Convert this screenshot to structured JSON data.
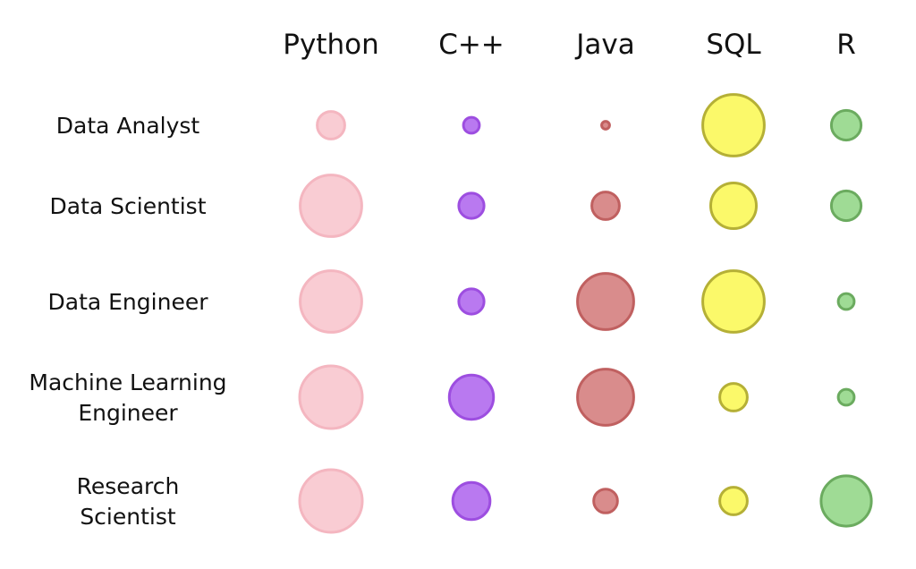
{
  "chart_data": {
    "type": "bubble-matrix",
    "columns": [
      "Python",
      "C++",
      "Java",
      "SQL",
      "R"
    ],
    "rows": [
      {
        "label": [
          "Data Analyst"
        ],
        "values": [
          12,
          4,
          1,
          60,
          14
        ]
      },
      {
        "label": [
          "Data Scientist"
        ],
        "values": [
          60,
          10,
          12,
          33,
          14
        ]
      },
      {
        "label": [
          "Data Engineer"
        ],
        "values": [
          60,
          10,
          50,
          60,
          4
        ]
      },
      {
        "label": [
          "Machine Learning",
          "Engineer"
        ],
        "values": [
          62,
          31,
          50,
          12,
          4
        ]
      },
      {
        "label": [
          "Research",
          "Scientist"
        ],
        "values": [
          62,
          22,
          9,
          12,
          40
        ]
      }
    ],
    "column_colors": [
      {
        "fill": "#f9ccd3",
        "stroke": "#f4b6c0"
      },
      {
        "fill": "#b979f0",
        "stroke": "#9d4ee0"
      },
      {
        "fill": "#d98c8c",
        "stroke": "#c06060"
      },
      {
        "fill": "#fbf96a",
        "stroke": "#b5b036"
      },
      {
        "fill": "#9fdb95",
        "stroke": "#6bab5f"
      }
    ],
    "max_value": 62,
    "grid": false,
    "legend": "none"
  }
}
